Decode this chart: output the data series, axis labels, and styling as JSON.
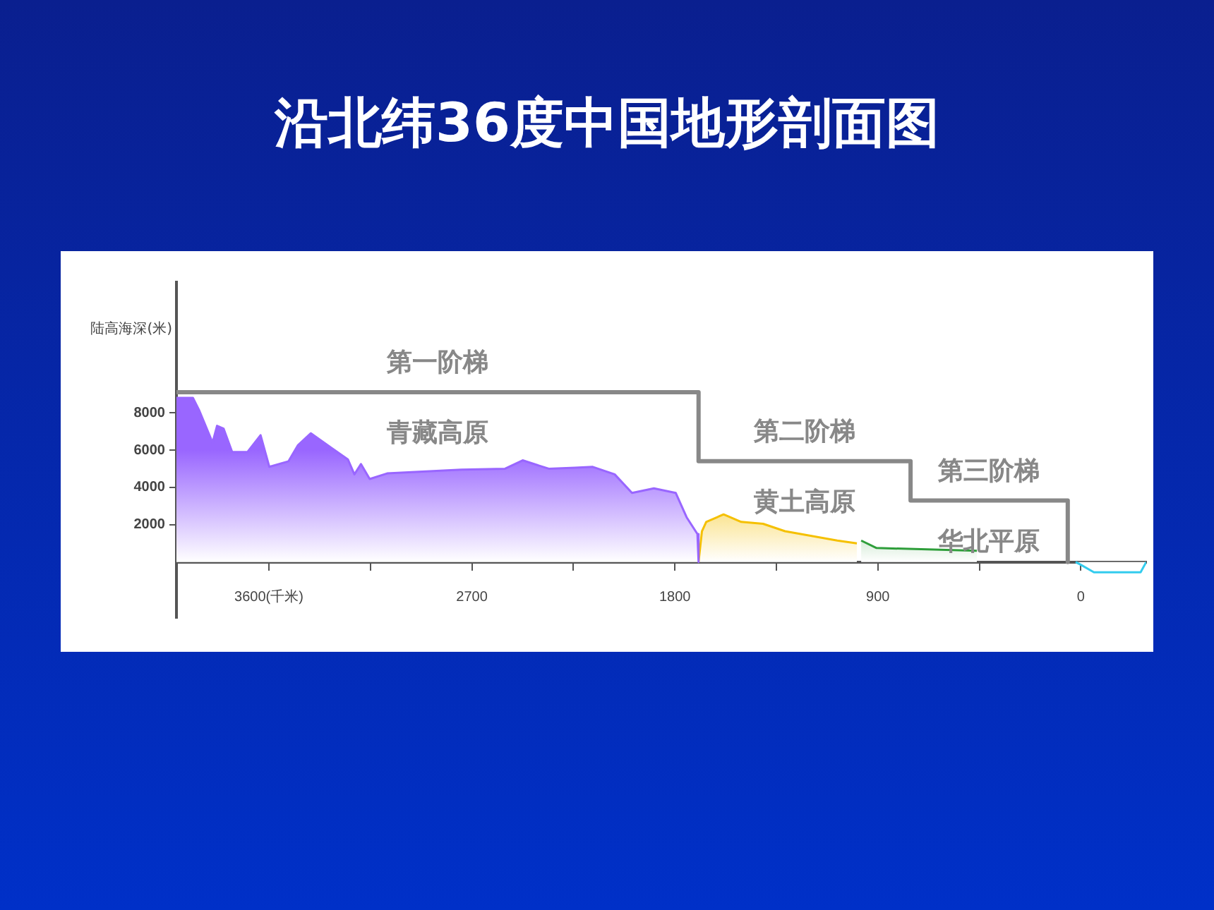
{
  "chart_data": {
    "type": "area",
    "title": "沿北纬36度中国地形剖面图",
    "ylabel": "陆高海深(米)",
    "xlim": [
      4010,
      -290
    ],
    "xticks": [
      {
        "value": 3600,
        "label": "3600(千米)"
      },
      {
        "value": 3150,
        "label": null
      },
      2700,
      {
        "value": 2250,
        "label": null
      },
      1800,
      {
        "value": 1350,
        "label": null
      },
      900,
      {
        "value": 450,
        "label": null
      },
      0
    ],
    "ylim": [
      -3000,
      15000
    ],
    "yticks": [
      2000,
      4000,
      6000,
      8000
    ],
    "series": [
      {
        "color": "#9966ff",
        "x": [
          4010,
          3937,
          3908,
          3850,
          3830,
          3801,
          3763,
          3695,
          3637,
          3598,
          3513,
          3472,
          3414,
          3327,
          3250,
          3221,
          3192,
          3153,
          3076,
          2747,
          2553,
          2475,
          2359,
          2243,
          2164,
          2067,
          1990,
          1893,
          1796,
          1748,
          1700,
          1695
        ],
        "values": [
          8800,
          8800,
          8100,
          6400,
          7300,
          7150,
          5900,
          5900,
          6800,
          5100,
          5400,
          6250,
          6900,
          6150,
          5500,
          4700,
          5250,
          4450,
          4750,
          4950,
          5000,
          5450,
          5000,
          5050,
          5100,
          4700,
          3700,
          3950,
          3700,
          2400,
          1500,
          0
        ]
      },
      {
        "color": "#f5c000",
        "x": [
          1695,
          1680,
          1661,
          1584,
          1506,
          1409,
          1312,
          1080,
          993
        ],
        "values": [
          0,
          1650,
          2150,
          2550,
          2150,
          2050,
          1650,
          1150,
          1000
        ]
      },
      {
        "color": "#2e9e3a",
        "x": [
          974,
          906,
          461
        ],
        "values": [
          1150,
          750,
          600
        ]
      },
      {
        "color": "#33ccee",
        "x": [
          23,
          0,
          -58,
          -265,
          -290
        ],
        "values": [
          0,
          -150,
          -550,
          -550,
          0
        ]
      },
      {
        "type": "line",
        "color": "#888888",
        "x": [
          4010,
          1695,
          1695,
          755,
          755,
          58,
          58
        ],
        "values": [
          9100,
          9100,
          5400,
          5400,
          3300,
          3300,
          0
        ]
      }
    ],
    "annotations": [
      "第一阶梯",
      "青藏高原",
      "第二阶梯",
      "黄土高原",
      "第三阶梯",
      "华北平原"
    ]
  }
}
